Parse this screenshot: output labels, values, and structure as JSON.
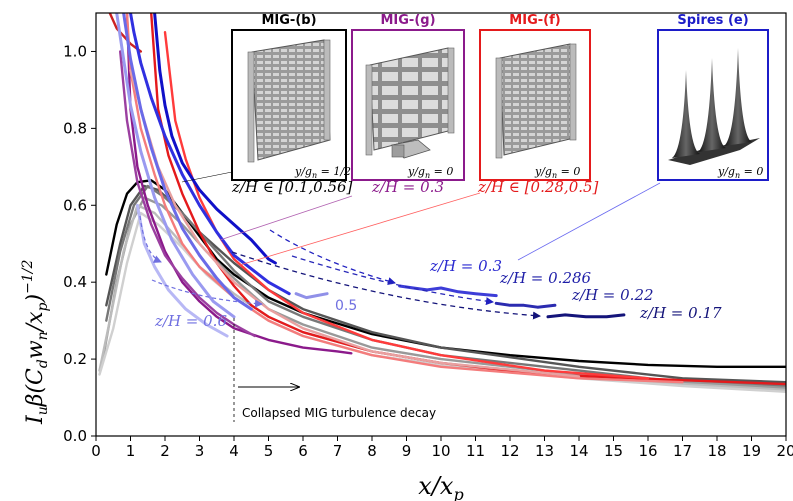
{
  "chart_data": {
    "type": "line",
    "xlabel": "x/x_p",
    "ylabel": "I_u β(C_d w_n/x_p)^{-1/2}",
    "xlim": [
      0,
      20
    ],
    "ylim": [
      0,
      1.1
    ],
    "x_ticks": [
      "0",
      "1",
      "2",
      "3",
      "4",
      "5",
      "6",
      "7",
      "8",
      "9",
      "10",
      "11",
      "12",
      "13",
      "14",
      "15",
      "16",
      "17",
      "18",
      "19",
      "20"
    ],
    "y_ticks": [
      "0.0",
      "0.2",
      "0.4",
      "0.6",
      "0.8",
      "1.0"
    ],
    "grid": false,
    "series": [
      {
        "color": "#000000",
        "x": [
          0.3,
          0.6,
          0.9,
          1.2,
          1.6,
          2.0,
          2.5,
          3,
          3.5,
          4,
          5,
          6,
          8,
          10,
          12,
          14,
          16,
          18,
          20
        ],
        "y": [
          0.42,
          0.55,
          0.63,
          0.66,
          0.665,
          0.64,
          0.58,
          0.52,
          0.46,
          0.42,
          0.36,
          0.32,
          0.265,
          0.23,
          0.21,
          0.195,
          0.185,
          0.18,
          0.18
        ]
      },
      {
        "color": "#555555",
        "x": [
          0.3,
          0.7,
          1.0,
          1.4,
          1.8,
          2.3,
          3,
          4,
          5,
          6,
          8,
          10,
          14,
          17,
          20
        ],
        "y": [
          0.34,
          0.5,
          0.6,
          0.65,
          0.64,
          0.6,
          0.53,
          0.45,
          0.38,
          0.33,
          0.27,
          0.23,
          0.18,
          0.15,
          0.14
        ]
      },
      {
        "color": "#777777",
        "x": [
          0.3,
          0.7,
          1.1,
          1.5,
          2.0,
          2.6,
          3.3,
          4,
          5,
          6,
          8,
          10,
          14,
          17,
          20
        ],
        "y": [
          0.3,
          0.48,
          0.6,
          0.65,
          0.62,
          0.57,
          0.5,
          0.43,
          0.35,
          0.31,
          0.25,
          0.21,
          0.17,
          0.14,
          0.13
        ]
      },
      {
        "color": "#999999",
        "x": [
          0.2,
          0.6,
          1.0,
          1.4,
          1.9,
          2.5,
          3.2,
          4,
          5,
          6,
          8,
          10,
          14,
          17,
          20
        ],
        "y": [
          0.2,
          0.4,
          0.55,
          0.62,
          0.6,
          0.55,
          0.48,
          0.41,
          0.33,
          0.29,
          0.23,
          0.2,
          0.16,
          0.14,
          0.125
        ]
      },
      {
        "color": "#bbbbbb",
        "x": [
          0.1,
          0.4,
          0.8,
          1.2,
          1.7,
          2.3,
          3,
          4,
          5,
          6,
          8,
          10,
          14,
          17,
          20
        ],
        "y": [
          0.17,
          0.3,
          0.48,
          0.6,
          0.58,
          0.52,
          0.44,
          0.37,
          0.31,
          0.27,
          0.22,
          0.19,
          0.155,
          0.135,
          0.12
        ]
      },
      {
        "color": "#d0d0d0",
        "x": [
          0.1,
          0.5,
          0.9,
          1.3,
          1.8,
          2.5,
          3.2,
          4,
          5,
          6,
          8,
          10,
          14,
          17,
          20
        ],
        "y": [
          0.16,
          0.28,
          0.45,
          0.58,
          0.55,
          0.49,
          0.42,
          0.36,
          0.3,
          0.26,
          0.21,
          0.185,
          0.15,
          0.13,
          0.115
        ]
      },
      {
        "color": "#8b1a8b",
        "x": [
          0.9,
          1.0,
          1.2,
          1.5,
          2,
          2.5,
          3,
          3.5,
          4,
          5,
          6,
          7,
          7.4
        ],
        "y": [
          1.1,
          0.85,
          0.7,
          0.6,
          0.48,
          0.4,
          0.35,
          0.31,
          0.28,
          0.25,
          0.23,
          0.22,
          0.215
        ]
      },
      {
        "color": "#9b3fa0",
        "x": [
          0.7,
          0.9,
          1.2,
          1.6,
          2,
          2.5,
          3,
          3.5,
          4,
          4.6
        ],
        "y": [
          1.0,
          0.82,
          0.66,
          0.55,
          0.47,
          0.41,
          0.36,
          0.32,
          0.29,
          0.26
        ]
      },
      {
        "color": "#e41a1c",
        "x": [
          1.6,
          1.8,
          2.1,
          2.5,
          3,
          3.5,
          4,
          4.5,
          5,
          6,
          8,
          10,
          13,
          17,
          20
        ],
        "y": [
          1.1,
          0.85,
          0.73,
          0.63,
          0.53,
          0.45,
          0.39,
          0.34,
          0.31,
          0.27,
          0.22,
          0.19,
          0.16,
          0.145,
          0.135
        ]
      },
      {
        "color": "#cc2222",
        "x": [
          0.4,
          0.6,
          0.8,
          1.0,
          1.3
        ],
        "y": [
          1.1,
          1.06,
          1.04,
          1.02,
          1.0
        ]
      },
      {
        "color": "#f47c7c",
        "x": [
          0.9,
          1.0,
          1.3,
          1.7,
          2,
          2.5,
          3,
          4,
          5,
          6,
          8,
          10,
          14,
          17
        ],
        "y": [
          1.1,
          0.95,
          0.8,
          0.68,
          0.6,
          0.5,
          0.44,
          0.36,
          0.3,
          0.26,
          0.21,
          0.18,
          0.15,
          0.14
        ]
      },
      {
        "color": "#e8a0a0",
        "x": [
          1.0,
          1.4,
          1.8,
          2.3,
          3,
          4,
          5,
          6,
          8,
          10,
          14
        ],
        "y": [
          0.95,
          0.82,
          0.7,
          0.6,
          0.5,
          0.4,
          0.33,
          0.28,
          0.22,
          0.19,
          0.155
        ]
      },
      {
        "color": "#ff3b3b",
        "x": [
          2.0,
          2.3,
          2.6,
          3,
          3.5,
          4,
          5,
          6,
          8,
          10,
          13,
          16
        ],
        "y": [
          1.05,
          0.82,
          0.72,
          0.62,
          0.53,
          0.46,
          0.38,
          0.32,
          0.25,
          0.21,
          0.17,
          0.15
        ]
      },
      {
        "color": "#1010c8",
        "x": [
          1.7,
          1.85,
          2.0,
          2.2,
          2.5,
          3.0,
          3.5,
          4.0,
          4.5,
          5.0,
          5.2
        ],
        "y": [
          1.1,
          0.95,
          0.86,
          0.78,
          0.71,
          0.64,
          0.59,
          0.55,
          0.51,
          0.46,
          0.45
        ]
      },
      {
        "color": "#3030e0",
        "x": [
          1.0,
          1.1,
          1.3,
          1.6,
          2,
          2.5,
          3,
          3.5,
          4,
          5,
          5.6
        ],
        "y": [
          1.1,
          1.05,
          0.97,
          0.88,
          0.78,
          0.68,
          0.6,
          0.53,
          0.47,
          0.4,
          0.37
        ]
      },
      {
        "color": "#6a6ae8",
        "x": [
          0.8,
          1.0,
          1.3,
          1.6,
          2,
          2.5,
          3,
          3.5,
          4,
          4.5
        ],
        "y": [
          1.1,
          0.98,
          0.85,
          0.75,
          0.64,
          0.54,
          0.47,
          0.41,
          0.36,
          0.33
        ]
      },
      {
        "color": "#9a9af0",
        "x": [
          0.6,
          0.8,
          1.0,
          1.3,
          1.7,
          2.2,
          2.8,
          3.4,
          4
        ],
        "y": [
          1.1,
          0.98,
          0.86,
          0.74,
          0.62,
          0.51,
          0.42,
          0.35,
          0.31
        ]
      },
      {
        "color": "#b8b8f5",
        "x": [
          1.2,
          1.4,
          1.7,
          2.1,
          2.6,
          3.2,
          3.8
        ],
        "y": [
          0.6,
          0.5,
          0.44,
          0.38,
          0.33,
          0.29,
          0.26
        ]
      },
      {
        "color": "#3d3dd8",
        "x": [
          8.8,
          9.2,
          9.6,
          10.0,
          10.5,
          11.0,
          11.6
        ],
        "y": [
          0.39,
          0.385,
          0.38,
          0.385,
          0.375,
          0.37,
          0.365
        ]
      },
      {
        "color": "#2b2bb0",
        "x": [
          11.6,
          12.0,
          12.4,
          12.8,
          13.3
        ],
        "y": [
          0.345,
          0.34,
          0.34,
          0.335,
          0.34
        ]
      },
      {
        "color": "#14147a",
        "x": [
          13.1,
          13.6,
          14.2,
          14.8,
          15.3
        ],
        "y": [
          0.31,
          0.315,
          0.31,
          0.31,
          0.315
        ]
      },
      {
        "color": "#9090e8",
        "x": [
          5.8,
          6.1,
          6.4,
          6.7
        ],
        "y": [
          0.37,
          0.36,
          0.365,
          0.37
        ]
      }
    ],
    "annotations": [
      "z/H ∈ [0.1,0.56]",
      "z/H = 0.3",
      "z/H ∈ [0.28,0.5]",
      "z/H = 0.3",
      "z/H = 0.286",
      "z/H = 0.22",
      "z/H = 0.17",
      "z/H = 0.6",
      "0.5",
      "Collapsed MIG turbulence decay"
    ]
  },
  "labels": {
    "xlabel": "x/x",
    "xlabel_sub": "p",
    "ylabel_main": "I",
    "ylabel_u": "u",
    "ylabel_beta": "β(C",
    "ylabel_d": "d",
    "ylabel_w": "w",
    "ylabel_n": "n",
    "ylabel_slash": "/x",
    "ylabel_p": "p",
    "ylabel_close": ")",
    "ylabel_exp": "−1/2"
  },
  "insets": [
    {
      "title": "MIG-(b)",
      "caption": "y/g",
      "caption_sub": "n",
      "caption_value": " = 1/2",
      "color": "#000000"
    },
    {
      "title": "MIG-(g)",
      "caption": "y/g",
      "caption_sub": "n",
      "caption_value": " = 0",
      "color": "#8b1a8b"
    },
    {
      "title": "MIG-(f)",
      "caption": "y/g",
      "caption_sub": "n",
      "caption_value": " = 0",
      "color": "#e41a1c"
    },
    {
      "title": "Spires (e)",
      "caption": "y/g",
      "caption_sub": "n",
      "caption_value": " = 0",
      "color": "#1c1cc8"
    }
  ],
  "annotation_text": {
    "a1": "z/H ∈ [0.1,0.56]",
    "a2": "z/H = 0.3",
    "a3": "z/H ∈ [0.28,0.5]",
    "a4": "z/H = 0.3",
    "a5": "z/H = 0.286",
    "a6": "z/H = 0.22",
    "a7": "z/H = 0.17",
    "a8": "z/H = 0.6",
    "a9": "0.5",
    "a10": "Collapsed MIG turbulence decay"
  },
  "colors": {
    "purple": "#8b1a8b",
    "red": "#e41a1c",
    "blue": "#1c1cc8",
    "navy": "#14147a",
    "light_blue": "#6f6fe0"
  }
}
